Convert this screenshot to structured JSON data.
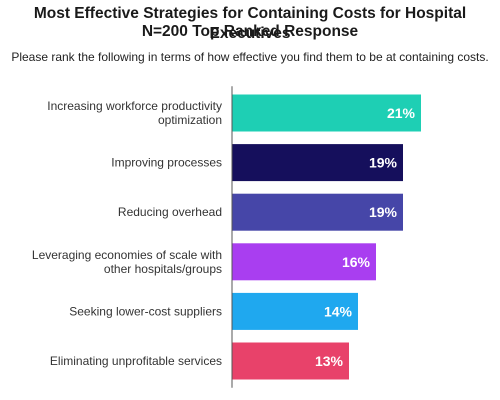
{
  "chart_data": {
    "type": "bar",
    "orientation": "horizontal",
    "title": "Most Effective Strategies for Containing Costs for Hospital Executives",
    "subtitle_line": "N=200 Top Ranked Response",
    "question": "Please rank the following in terms of how effective you find them to be at containing costs.",
    "categories": [
      [
        "Increasing workforce productivity",
        "optimization"
      ],
      [
        "Improving processes"
      ],
      [
        "Reducing overhead"
      ],
      [
        "Leveraging economies of scale with",
        "other hospitals/groups"
      ],
      [
        "Seeking lower-cost suppliers"
      ],
      [
        "Eliminating unprofitable services"
      ]
    ],
    "values": [
      21,
      19,
      19,
      16,
      14,
      13
    ],
    "value_labels": [
      "21%",
      "19%",
      "19%",
      "16%",
      "14%",
      "13%"
    ],
    "colors": [
      "#1ecfb4",
      "#150f5c",
      "#4646a8",
      "#a93ef0",
      "#1fa8ef",
      "#e8426a"
    ],
    "axis_color": "#555555",
    "grid": false,
    "legend": "none"
  }
}
